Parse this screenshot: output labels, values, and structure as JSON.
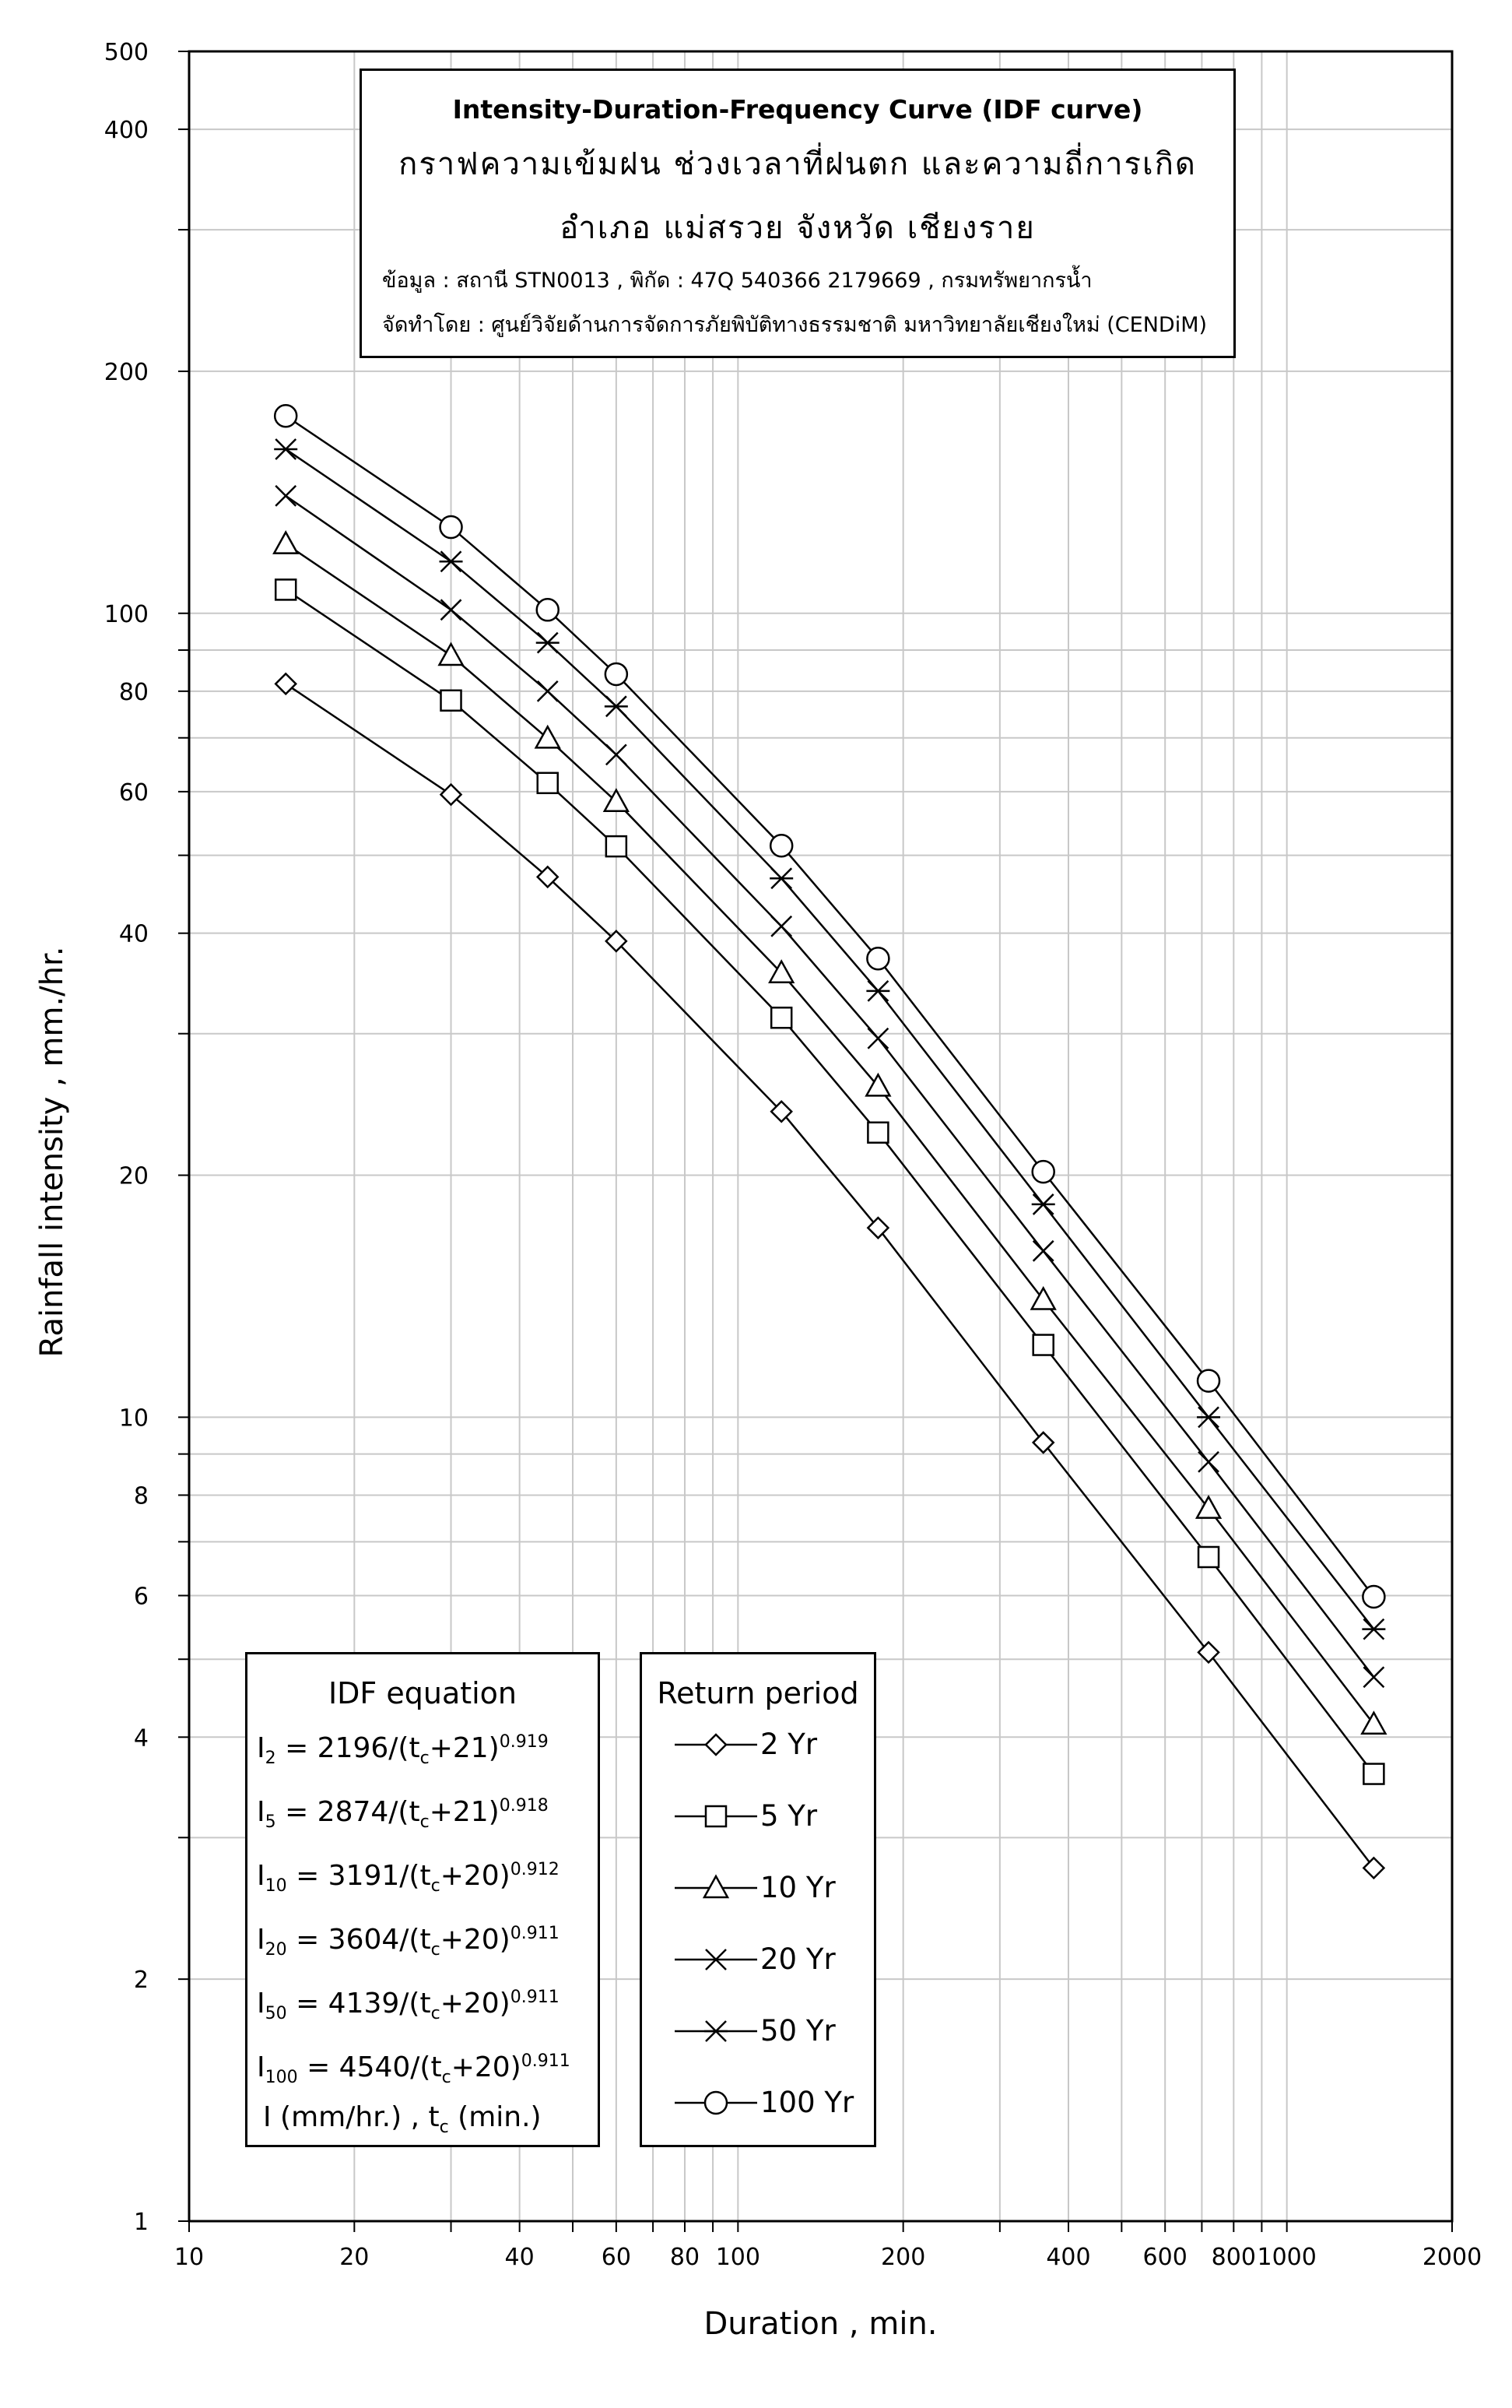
{
  "chart_data": {
    "type": "line",
    "title": "Intensity-Duration-Frequency Curve (IDF curve)",
    "subtitle_lines": [
      "กราฟความเข้มฝน ช่วงเวลาที่ฝนตก และความถี่การเกิด",
      "อำเภอ แม่สรวย จังหวัด เชียงราย"
    ],
    "info_lines": [
      "ข้อมูล : สถานี STN0013 , พิกัด : 47Q 540366 2179669 , กรมทรัพยากรน้ำ",
      "จัดทำโดย : ศูนย์วิจัยด้านการจัดการภัยพิบัติทางธรรมชาติ มหาวิทยาลัยเชียงใหม่ (CENDiM)"
    ],
    "xlabel": "Duration , min.",
    "ylabel": "Rainfall intensity , mm./hr.",
    "x_scale": "log",
    "y_scale": "log",
    "xlim": [
      10,
      2000
    ],
    "ylim": [
      1,
      500
    ],
    "grid": true,
    "x_ticks": [
      10,
      20,
      40,
      60,
      80,
      100,
      200,
      400,
      600,
      800,
      1000,
      2000
    ],
    "x_tick_labels": [
      "10",
      "20",
      "40",
      "60",
      "80",
      "100",
      "200",
      "400",
      "600",
      "800",
      "1000",
      "2000"
    ],
    "y_ticks": [
      1,
      2,
      4,
      6,
      8,
      10,
      20,
      40,
      60,
      80,
      100,
      200,
      400,
      500
    ],
    "y_tick_labels": [
      "1",
      "2",
      "4",
      "6",
      "8",
      "10",
      "20",
      "40",
      "60",
      "80",
      "100",
      "200",
      "400",
      "500"
    ],
    "x": [
      15,
      30,
      45,
      60,
      120,
      180,
      360,
      720,
      1440
    ],
    "series": [
      {
        "name": "2 Yr",
        "marker": "diamond",
        "values": [
          81.7,
          59.5,
          47.0,
          39.1,
          24.0,
          17.2,
          9.3,
          5.1,
          2.75
        ]
      },
      {
        "name": "5 Yr",
        "marker": "square",
        "values": [
          107.0,
          77.9,
          61.5,
          51.3,
          31.4,
          22.6,
          12.3,
          6.7,
          3.6
        ]
      },
      {
        "name": "10 Yr",
        "marker": "triangle",
        "values": [
          122.0,
          88.6,
          69.9,
          58.3,
          35.7,
          25.8,
          14.0,
          7.7,
          4.15
        ]
      },
      {
        "name": "20 Yr",
        "marker": "x",
        "values": [
          140.0,
          101.0,
          80.0,
          66.7,
          40.8,
          29.6,
          16.1,
          8.8,
          4.75
        ]
      },
      {
        "name": "50 Yr",
        "marker": "asterisk",
        "values": [
          160.0,
          116.0,
          91.9,
          76.6,
          46.8,
          33.9,
          18.4,
          10.0,
          5.45
        ]
      },
      {
        "name": "100 Yr",
        "marker": "circle",
        "values": [
          176.0,
          128.0,
          101.0,
          84.0,
          51.4,
          37.2,
          20.2,
          11.1,
          5.98
        ]
      }
    ]
  },
  "equation_box": {
    "heading": "IDF equation",
    "lines": [
      {
        "lhs": "I",
        "sub": "2",
        "mid": " = 2196/(t",
        "sub2": "c",
        "rhs": "+21)",
        "exp": "0.919"
      },
      {
        "lhs": "I",
        "sub": "5",
        "mid": " = 2874/(t",
        "sub2": "c",
        "rhs": "+21)",
        "exp": "0.918"
      },
      {
        "lhs": "I",
        "sub": "10",
        "mid": " = 3191/(t",
        "sub2": "c",
        "rhs": "+20)",
        "exp": "0.912"
      },
      {
        "lhs": "I",
        "sub": "20",
        "mid": " = 3604/(t",
        "sub2": "c",
        "rhs": "+20)",
        "exp": "0.911"
      },
      {
        "lhs": "I",
        "sub": "50",
        "mid": " = 4139/(t",
        "sub2": "c",
        "rhs": "+20)",
        "exp": "0.911"
      },
      {
        "lhs": "I",
        "sub": "100",
        "mid": " = 4540/(t",
        "sub2": "c",
        "rhs": "+20)",
        "exp": "0.911"
      }
    ],
    "footer_a": "I (mm/hr.) , t",
    "footer_sub": "c",
    "footer_b": " (min.)"
  },
  "legend": {
    "heading": "Return period",
    "placement": "bottom-center"
  },
  "colors": {
    "line": "#000000",
    "grid": "#c8c8c8",
    "background": "#ffffff"
  }
}
